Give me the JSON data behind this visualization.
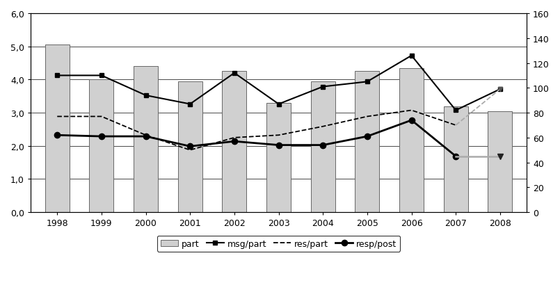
{
  "years": [
    1998,
    1999,
    2000,
    2001,
    2002,
    2003,
    2004,
    2005,
    2006,
    2007,
    2008
  ],
  "part": [
    5.05,
    4.0,
    4.4,
    3.95,
    4.25,
    3.3,
    3.95,
    4.25,
    4.35,
    3.2,
    3.05
  ],
  "msg_per_part": [
    110,
    110,
    94,
    87,
    112,
    87,
    101,
    105,
    126,
    82,
    99
  ],
  "res_per_part": [
    77,
    77,
    62,
    50,
    60,
    62,
    69,
    77,
    82,
    70,
    99
  ],
  "resp_per_post": [
    62,
    61,
    61,
    53,
    57,
    54,
    54,
    61,
    74,
    45,
    45
  ],
  "bar_color": "#d0d0d0",
  "bar_edgecolor": "#666666",
  "left_ylim": [
    0,
    6.0
  ],
  "left_yticks": [
    0.0,
    1.0,
    2.0,
    3.0,
    4.0,
    5.0,
    6.0
  ],
  "left_yticklabels": [
    "0,0",
    "1,0",
    "2,0",
    "3,0",
    "4,0",
    "5,0",
    "6,0"
  ],
  "right_ylim": [
    0,
    160
  ],
  "right_yticks": [
    0,
    20,
    40,
    60,
    80,
    100,
    120,
    140,
    160
  ],
  "right_yticklabels": [
    "0",
    "20",
    "40",
    "60",
    "80",
    "100",
    "120",
    "140",
    "160"
  ]
}
